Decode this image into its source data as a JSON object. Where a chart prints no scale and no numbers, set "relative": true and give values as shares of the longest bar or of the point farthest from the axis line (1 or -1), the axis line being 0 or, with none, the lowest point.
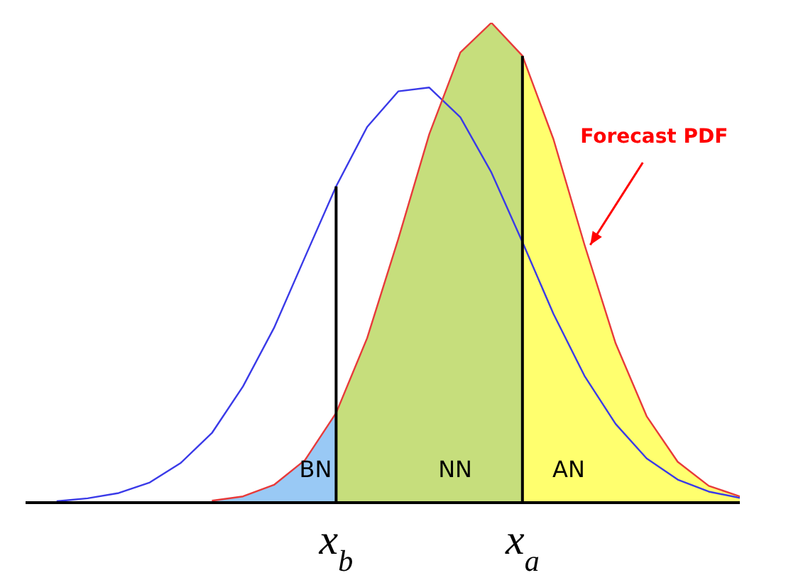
{
  "chart_data": {
    "type": "line",
    "relative": true,
    "categories": [
      null,
      null,
      null,
      null,
      null,
      null,
      null,
      null,
      null,
      null,
      "x$_{b}$",
      null,
      null,
      null,
      null,
      null,
      "x$_{a}$",
      null,
      null,
      null,
      null,
      null,
      null,
      null
    ],
    "series": [
      {
        "type": "area",
        "name": "BN",
        "color": "#99c9f5",
        "values": [
          null,
          null,
          null,
          null,
          null,
          null,
          0.004,
          0.013,
          0.037,
          0.089,
          0.187,
          null,
          null,
          null,
          null,
          null,
          null,
          null,
          null,
          null,
          null,
          null,
          null,
          null
        ]
      },
      {
        "type": "area",
        "name": "NN",
        "color": "#c6de7c",
        "values": [
          null,
          null,
          null,
          null,
          null,
          null,
          null,
          null,
          null,
          null,
          0.187,
          0.343,
          0.549,
          0.768,
          0.938,
          1.0,
          0.931,
          null,
          null,
          null,
          null,
          null,
          null,
          null
        ]
      },
      {
        "type": "area",
        "name": "AN",
        "color": "#ffff6e",
        "values": [
          null,
          null,
          null,
          null,
          null,
          null,
          null,
          null,
          null,
          null,
          null,
          null,
          null,
          null,
          null,
          null,
          0.931,
          0.757,
          0.537,
          0.332,
          0.18,
          0.085,
          0.035,
          0.013
        ]
      },
      {
        "color": "#3a3ae8",
        "values": [
          null,
          0.003,
          0.009,
          0.02,
          0.042,
          0.083,
          0.145,
          0.242,
          0.364,
          0.512,
          0.659,
          0.783,
          0.857,
          0.865,
          0.803,
          0.688,
          0.543,
          0.393,
          0.264,
          0.164,
          0.092,
          0.048,
          0.023,
          0.01
        ]
      },
      {
        "name": "Forecast PDF",
        "color": "#e83a3a",
        "values": [
          null,
          null,
          null,
          null,
          null,
          null,
          0.004,
          0.013,
          0.037,
          0.089,
          0.187,
          0.343,
          0.549,
          0.768,
          0.938,
          1.0,
          0.931,
          0.757,
          0.537,
          0.332,
          0.18,
          0.085,
          0.035,
          0.013
        ]
      }
    ],
    "ref_lines": [
      {
        "axis": "x",
        "value": "x$_{b}$",
        "color": "#000000"
      },
      {
        "axis": "x",
        "value": "x$_{a}$",
        "color": "#000000"
      }
    ]
  }
}
